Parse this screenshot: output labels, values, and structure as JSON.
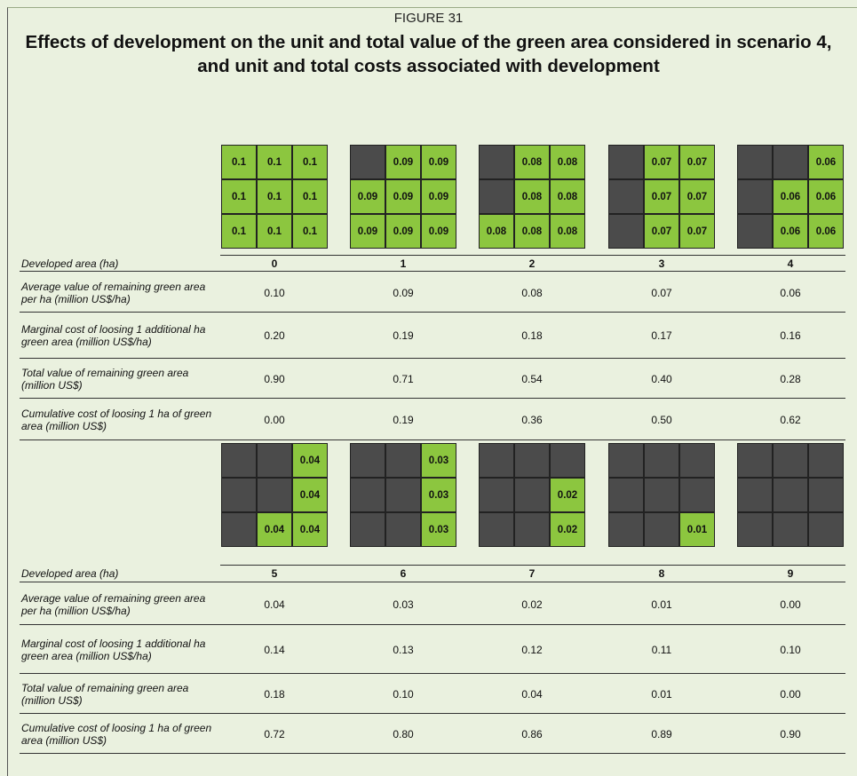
{
  "figure_label": "FIGURE 31",
  "title": "Effects of development on the unit and total value of the green area considered in scenario 4, and unit and total costs associated with development",
  "panels": [
    {
      "grids": [
        [
          "0.1",
          "0.1",
          "0.1",
          "0.1",
          "0.1",
          "0.1",
          "0.1",
          "0.1",
          "0.1"
        ],
        [
          null,
          "0.09",
          "0.09",
          "0.09",
          "0.09",
          "0.09",
          "0.09",
          "0.09",
          "0.09"
        ],
        [
          null,
          "0.08",
          "0.08",
          null,
          "0.08",
          "0.08",
          "0.08",
          "0.08",
          "0.08"
        ],
        [
          null,
          "0.07",
          "0.07",
          null,
          "0.07",
          "0.07",
          null,
          "0.07",
          "0.07"
        ],
        [
          null,
          null,
          "0.06",
          null,
          "0.06",
          "0.06",
          null,
          "0.06",
          "0.06"
        ]
      ],
      "row_labels": [
        "Developed area (ha)",
        "Average value of remaining green area per ha (million US$/ha)",
        "Marginal cost of loosing 1 additional ha green area (million US$/ha)",
        "Total value of remaining green area (million US$)",
        "Cumulative cost of loosing 1 ha of green area (million US$)"
      ],
      "rows": [
        [
          "0",
          "1",
          "2",
          "3",
          "4"
        ],
        [
          "0.10",
          "0.09",
          "0.08",
          "0.07",
          "0.06"
        ],
        [
          "0.20",
          "0.19",
          "0.18",
          "0.17",
          "0.16"
        ],
        [
          "0.90",
          "0.71",
          "0.54",
          "0.40",
          "0.28"
        ],
        [
          "0.00",
          "0.19",
          "0.36",
          "0.50",
          "0.62"
        ]
      ]
    },
    {
      "grids": [
        [
          null,
          null,
          "0.04",
          null,
          null,
          "0.04",
          null,
          "0.04",
          "0.04"
        ],
        [
          null,
          null,
          "0.03",
          null,
          null,
          "0.03",
          null,
          null,
          "0.03"
        ],
        [
          null,
          null,
          null,
          null,
          null,
          "0.02",
          null,
          null,
          "0.02"
        ],
        [
          null,
          null,
          null,
          null,
          null,
          null,
          null,
          null,
          "0.01"
        ],
        [
          null,
          null,
          null,
          null,
          null,
          null,
          null,
          null,
          null
        ]
      ],
      "row_labels": [
        "Developed area (ha)",
        "Average value of remaining green area per ha (million US$/ha)",
        "Marginal cost of loosing 1 additional ha green area (million US$/ha)",
        "Total value of remaining green area (million US$)",
        "Cumulative cost of loosing 1 ha of green area (million US$)"
      ],
      "rows": [
        [
          "5",
          "6",
          "7",
          "8",
          "9"
        ],
        [
          "0.04",
          "0.03",
          "0.02",
          "0.01",
          "0.00"
        ],
        [
          "0.14",
          "0.13",
          "0.12",
          "0.11",
          "0.10"
        ],
        [
          "0.18",
          "0.10",
          "0.04",
          "0.01",
          "0.00"
        ],
        [
          "0.72",
          "0.80",
          "0.86",
          "0.89",
          "0.90"
        ]
      ]
    }
  ]
}
